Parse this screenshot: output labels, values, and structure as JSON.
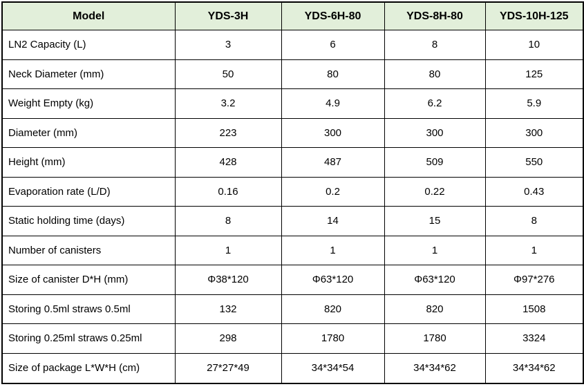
{
  "table": {
    "columns": [
      "Model",
      "YDS-3H",
      "YDS-6H-80",
      "YDS-8H-80",
      "YDS-10H-125"
    ],
    "rows": [
      {
        "label": "LN2 Capacity (L)",
        "values": [
          "3",
          "6",
          "8",
          "10"
        ]
      },
      {
        "label": "Neck Diameter (mm)",
        "values": [
          "50",
          "80",
          "80",
          "125"
        ]
      },
      {
        "label": "Weight Empty (kg)",
        "values": [
          "3.2",
          "4.9",
          "6.2",
          "5.9"
        ]
      },
      {
        "label": "Diameter (mm)",
        "values": [
          "223",
          "300",
          "300",
          "300"
        ]
      },
      {
        "label": "Height (mm)",
        "values": [
          "428",
          "487",
          "509",
          "550"
        ]
      },
      {
        "label": "Evaporation rate (L/D)",
        "values": [
          "0.16",
          "0.2",
          "0.22",
          "0.43"
        ]
      },
      {
        "label": "Static holding time (days)",
        "values": [
          "8",
          "14",
          "15",
          "8"
        ]
      },
      {
        "label": "Number of canisters",
        "values": [
          "1",
          "1",
          "1",
          "1"
        ]
      },
      {
        "label": "Size of canister D*H (mm)",
        "values": [
          "Φ38*120",
          "Φ63*120",
          "Φ63*120",
          "Φ97*276"
        ]
      },
      {
        "label": "Storing 0.5ml straws 0.5ml",
        "values": [
          "132",
          "820",
          "820",
          "1508"
        ]
      },
      {
        "label": "Storing 0.25ml straws 0.25ml",
        "values": [
          "298",
          "1780",
          "1780",
          "3324"
        ]
      },
      {
        "label": "Size of package L*W*H (cm)",
        "values": [
          "27*27*49",
          "34*34*54",
          "34*34*62",
          "34*34*62"
        ]
      }
    ]
  },
  "colors": {
    "header_bg": "#E2EFDA",
    "border": "#000000",
    "text": "#000000",
    "background": "#FFFFFF"
  }
}
